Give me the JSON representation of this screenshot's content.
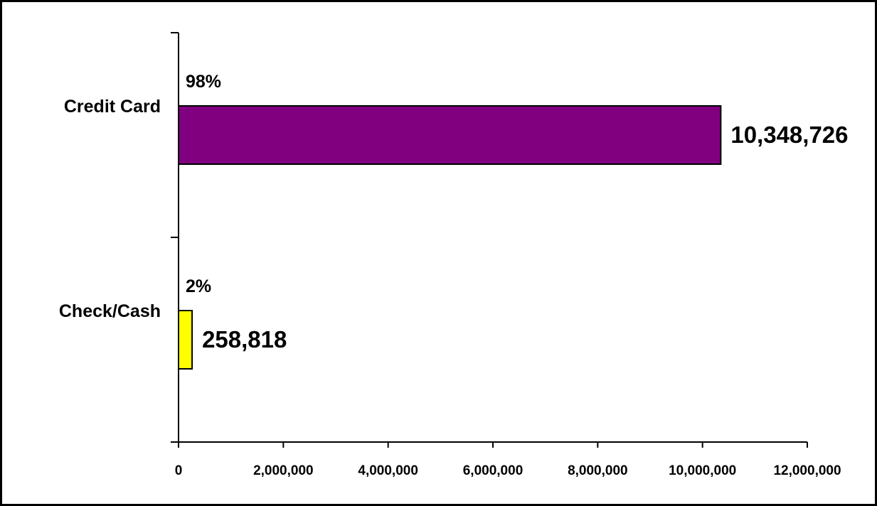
{
  "chart_data": {
    "type": "bar",
    "orientation": "horizontal",
    "title": "",
    "xlabel": "",
    "ylabel": "",
    "categories": [
      "Credit Card",
      "Check/Cash"
    ],
    "values": [
      10348726,
      258818
    ],
    "value_labels": [
      "10,348,726",
      "258,818"
    ],
    "percent_labels": [
      "98%",
      "2%"
    ],
    "colors": [
      "#800080",
      "#ffff00"
    ],
    "xlim": [
      0,
      12000000
    ],
    "xticks": [
      0,
      2000000,
      4000000,
      6000000,
      8000000,
      10000000,
      12000000
    ],
    "xtick_labels": [
      "0",
      "2,000,000",
      "4,000,000",
      "6,000,000",
      "8,000,000",
      "10,000,000",
      "12,000,000"
    ],
    "grid": false,
    "legend": "none"
  }
}
